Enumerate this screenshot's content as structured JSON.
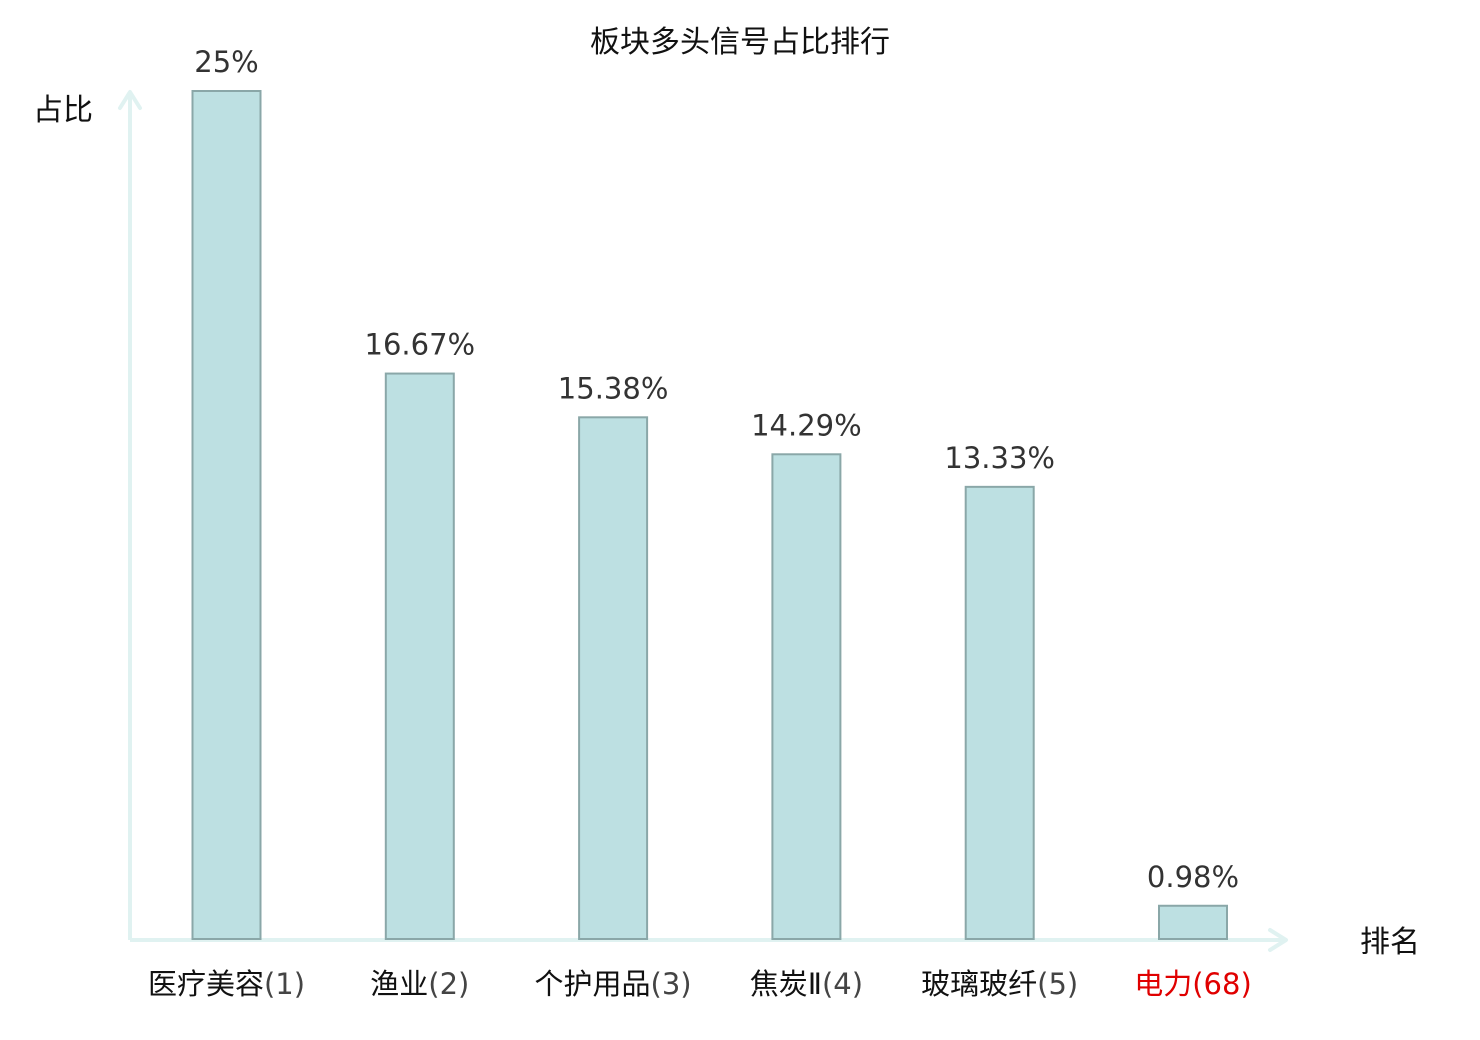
{
  "chart_data": {
    "type": "bar",
    "title": "板块多头信号占比排行",
    "ylabel": "占比",
    "xlabel": "排名",
    "ylim": [
      0,
      25
    ],
    "grid": false,
    "categories": [
      "医疗美容",
      "渔业",
      "个护用品",
      "焦炭Ⅱ",
      "玻璃玻纤",
      "电力"
    ],
    "ranks": [
      "(1)",
      "(2)",
      "(3)",
      "(4)",
      "(5)",
      "(68)"
    ],
    "values": [
      25,
      16.67,
      15.38,
      14.29,
      13.33,
      0.98
    ],
    "value_labels": [
      "25%",
      "16.67%",
      "15.38%",
      "14.29%",
      "13.33%",
      "0.98%"
    ],
    "highlight": [
      false,
      false,
      false,
      false,
      false,
      true
    ],
    "colors": {
      "bar_fill": "#bde0e2",
      "bar_stroke": "#8aa7a8",
      "axis": "#e0f2f1",
      "label": "#111111",
      "highlight": "#e00000"
    }
  }
}
